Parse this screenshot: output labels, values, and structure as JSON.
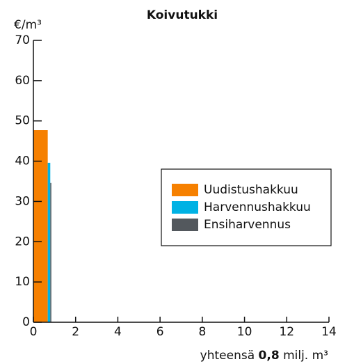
{
  "chart_data": {
    "type": "bar",
    "title": "Koivutukki",
    "y_unit": "€/m³",
    "series": [
      {
        "name": "Uudistushakkuu",
        "color": "#f68000",
        "volumes": [
          0.68
        ],
        "values": [
          47.7
        ]
      },
      {
        "name": "Harvennushakkuu",
        "color": "#00b2e4",
        "volumes": [
          0.12
        ],
        "values": [
          39.6
        ]
      },
      {
        "name": "Ensiharvennus",
        "color": "#53585d",
        "volumes": [
          0.05
        ],
        "values": [
          34.6
        ]
      }
    ],
    "xlim": [
      0,
      14
    ],
    "xticks": [
      0,
      2,
      4,
      6,
      8,
      10,
      12,
      14
    ],
    "ylim": [
      0,
      70
    ],
    "yticks": [
      0,
      10,
      20,
      30,
      40,
      50,
      60,
      70
    ],
    "footer": {
      "prefix": "yhteensä",
      "total": "0,8",
      "unit": "milj. m³"
    }
  }
}
